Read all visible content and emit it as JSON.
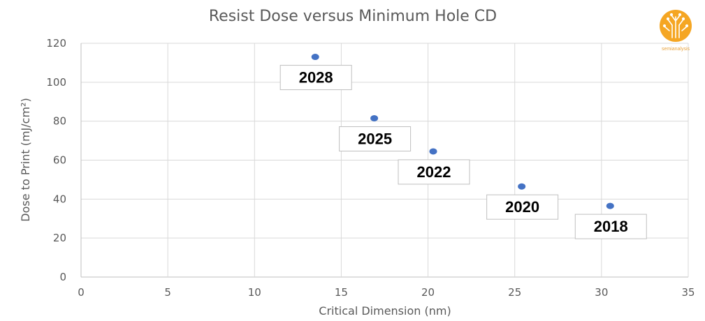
{
  "chart_data": {
    "type": "scatter",
    "title": "Resist Dose versus Minimum Hole CD",
    "xlabel": "Critical Dimension (nm)",
    "ylabel": "Dose to Print (mJ/cm²)",
    "xlim": [
      0,
      35
    ],
    "ylim": [
      0,
      120
    ],
    "xticks": [
      0,
      5,
      10,
      15,
      20,
      25,
      30,
      35
    ],
    "yticks": [
      0,
      20,
      40,
      60,
      80,
      100,
      120
    ],
    "grid": true,
    "legend": "none",
    "marker_color": "#4472c4",
    "points": [
      {
        "x": 13.5,
        "y": 113,
        "label": "2028"
      },
      {
        "x": 16.9,
        "y": 81.5,
        "label": "2025"
      },
      {
        "x": 20.3,
        "y": 64.5,
        "label": "2022"
      },
      {
        "x": 25.4,
        "y": 46.5,
        "label": "2020"
      },
      {
        "x": 30.5,
        "y": 36.5,
        "label": "2018"
      }
    ]
  },
  "logo": {
    "name": "semianalysis-logo",
    "text": "semianalysis",
    "color": "#f5a623"
  }
}
